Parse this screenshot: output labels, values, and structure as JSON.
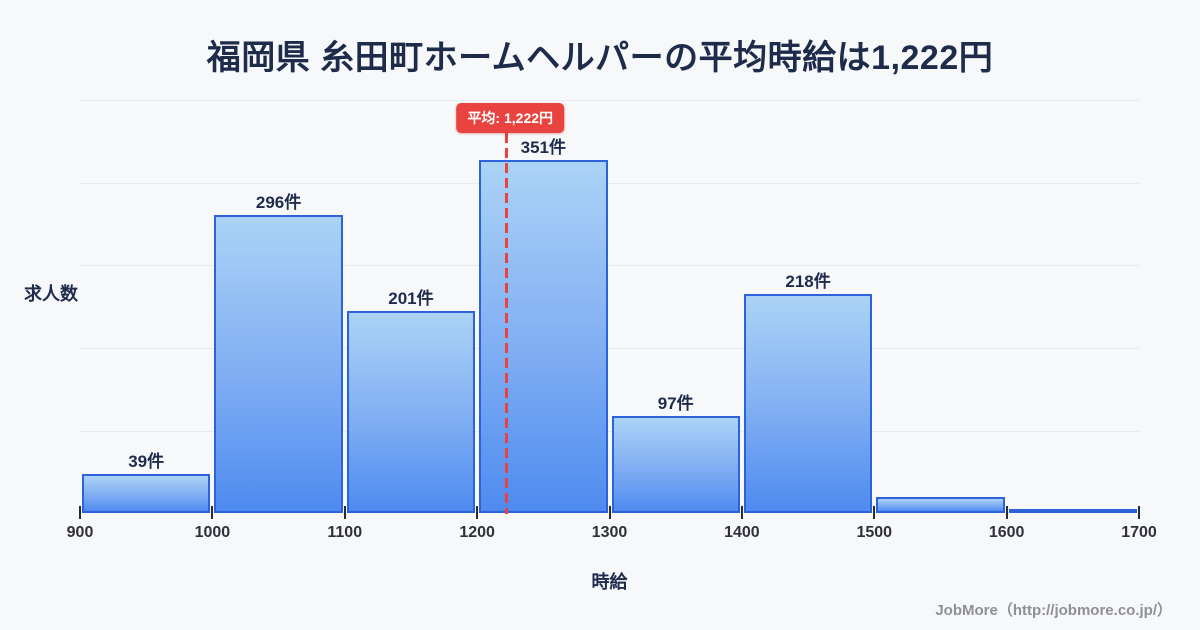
{
  "header": {
    "title": "福岡県 糸田町ホームヘルパーの平均時給は1,222円"
  },
  "axis": {
    "ylabel": "求人数",
    "xlabel": "時給"
  },
  "footer": {
    "credit": "JobMore（http://jobmore.co.jp/）"
  },
  "chart_data": {
    "type": "bar",
    "title": "福岡県 糸田町ホームヘルパーの平均時給は1,222円",
    "xlabel": "時給",
    "ylabel": "求人数",
    "xlim": [
      900,
      1700
    ],
    "ylim": [
      0,
      410
    ],
    "bin_width": 100,
    "grid": "horizontal",
    "gridline_count": 5,
    "legend": "none",
    "x_tick_labels": [
      "900",
      "1000",
      "1100",
      "1200",
      "1300",
      "1400",
      "1500",
      "1600",
      "1700"
    ],
    "bars": [
      {
        "range": [
          900,
          1000
        ],
        "count": 39,
        "label": "39件"
      },
      {
        "range": [
          1000,
          1100
        ],
        "count": 296,
        "label": "296件"
      },
      {
        "range": [
          1100,
          1200
        ],
        "count": 201,
        "label": "201件"
      },
      {
        "range": [
          1200,
          1300
        ],
        "count": 351,
        "label": "351件"
      },
      {
        "range": [
          1300,
          1400
        ],
        "count": 97,
        "label": "97件"
      },
      {
        "range": [
          1400,
          1500
        ],
        "count": 218,
        "label": "218件"
      },
      {
        "range": [
          1500,
          1600
        ],
        "count": 16,
        "label": ""
      },
      {
        "range": [
          1600,
          1700
        ],
        "count": 4,
        "label": ""
      }
    ],
    "average_line": {
      "value": 1222,
      "label": "平均: 1,222円"
    }
  },
  "colors": {
    "background": "#f7f8fa",
    "bar_fill_top": "#abd3f6",
    "bar_fill_bottom": "#4e8bf0",
    "bar_border": "#2c63da",
    "average_red": "#e8433f",
    "text_navy": "#1e2b4b",
    "tick_text": "#30303a",
    "gridline": "#e6e9ef",
    "footer_text": "#8f9094"
  }
}
